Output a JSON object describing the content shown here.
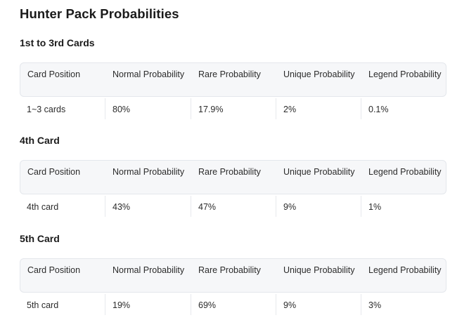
{
  "page": {
    "title": "Hunter Pack Probabilities"
  },
  "headers": [
    "Card Position",
    "Normal Probability",
    "Rare Probability",
    "Unique Probability",
    "Legend Probability"
  ],
  "sections": [
    {
      "title": "1st to 3rd Cards",
      "row": [
        "1~3 cards",
        "80%",
        "17.9%",
        "2%",
        "0.1%"
      ]
    },
    {
      "title": "4th Card",
      "row": [
        "4th card",
        "43%",
        "47%",
        "9%",
        "1%"
      ]
    },
    {
      "title": "5th Card",
      "row": [
        "5th card",
        "19%",
        "69%",
        "9%",
        "3%"
      ]
    }
  ]
}
